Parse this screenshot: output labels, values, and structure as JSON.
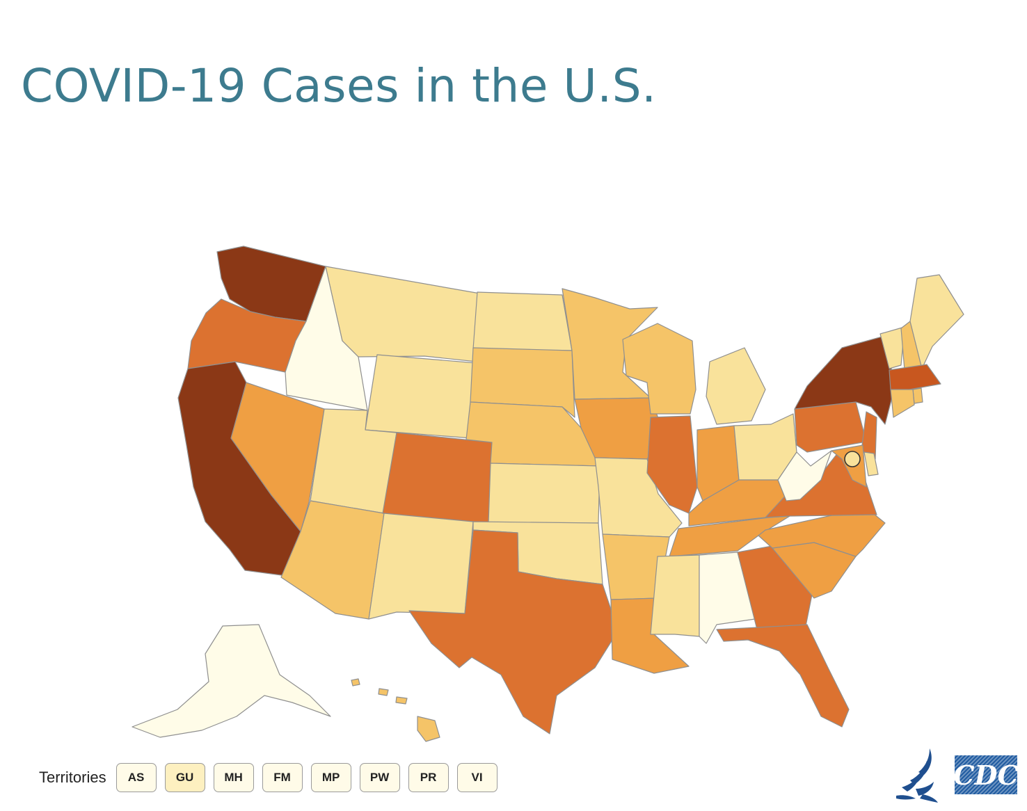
{
  "title": "COVID-19 Cases in the U.S.",
  "territories": {
    "label": "Territories",
    "items": [
      {
        "code": "AS",
        "color": "#fffbe8"
      },
      {
        "code": "GU",
        "color": "#fdf0c0"
      },
      {
        "code": "MH",
        "color": "#fffbe8"
      },
      {
        "code": "FM",
        "color": "#fffbe8"
      },
      {
        "code": "MP",
        "color": "#fffbe8"
      },
      {
        "code": "PW",
        "color": "#fffbe8"
      },
      {
        "code": "PR",
        "color": "#fffbe8"
      },
      {
        "code": "VI",
        "color": "#fffbe8"
      }
    ]
  },
  "legend_colors": {
    "none": "#fffce8",
    "low": "#f9e29b",
    "mid_low": "#f5c468",
    "mid": "#ef9f43",
    "mid_high": "#dc7230",
    "high": "#c8571f",
    "highest": "#8b3816"
  },
  "states": [
    {
      "name": "Washington",
      "level": "highest"
    },
    {
      "name": "Oregon",
      "level": "mid_high"
    },
    {
      "name": "California",
      "level": "highest"
    },
    {
      "name": "Idaho",
      "level": "none"
    },
    {
      "name": "Nevada",
      "level": "mid"
    },
    {
      "name": "Montana",
      "level": "low"
    },
    {
      "name": "Wyoming",
      "level": "low"
    },
    {
      "name": "Utah",
      "level": "low"
    },
    {
      "name": "Arizona",
      "level": "mid_low"
    },
    {
      "name": "Colorado",
      "level": "mid_high"
    },
    {
      "name": "New Mexico",
      "level": "low"
    },
    {
      "name": "North Dakota",
      "level": "low"
    },
    {
      "name": "South Dakota",
      "level": "mid_low"
    },
    {
      "name": "Nebraska",
      "level": "mid_low"
    },
    {
      "name": "Kansas",
      "level": "low"
    },
    {
      "name": "Oklahoma",
      "level": "low"
    },
    {
      "name": "Texas",
      "level": "mid_high"
    },
    {
      "name": "Minnesota",
      "level": "mid_low"
    },
    {
      "name": "Iowa",
      "level": "mid"
    },
    {
      "name": "Missouri",
      "level": "low"
    },
    {
      "name": "Arkansas",
      "level": "mid_low"
    },
    {
      "name": "Louisiana",
      "level": "mid"
    },
    {
      "name": "Wisconsin",
      "level": "mid_low"
    },
    {
      "name": "Illinois",
      "level": "mid_high"
    },
    {
      "name": "Michigan",
      "level": "low"
    },
    {
      "name": "Indiana",
      "level": "mid"
    },
    {
      "name": "Ohio",
      "level": "low"
    },
    {
      "name": "Kentucky",
      "level": "mid"
    },
    {
      "name": "Tennessee",
      "level": "mid"
    },
    {
      "name": "Mississippi",
      "level": "low"
    },
    {
      "name": "Alabama",
      "level": "none"
    },
    {
      "name": "Georgia",
      "level": "mid_high"
    },
    {
      "name": "Florida",
      "level": "mid_high"
    },
    {
      "name": "South Carolina",
      "level": "mid"
    },
    {
      "name": "North Carolina",
      "level": "mid"
    },
    {
      "name": "Virginia",
      "level": "mid_high"
    },
    {
      "name": "West Virginia",
      "level": "none"
    },
    {
      "name": "Pennsylvania",
      "level": "mid_high"
    },
    {
      "name": "New York",
      "level": "highest"
    },
    {
      "name": "Vermont",
      "level": "low"
    },
    {
      "name": "New Hampshire",
      "level": "mid_low"
    },
    {
      "name": "Maine",
      "level": "low"
    },
    {
      "name": "Massachusetts",
      "level": "high"
    },
    {
      "name": "Rhode Island",
      "level": "mid_low"
    },
    {
      "name": "Connecticut",
      "level": "mid_low"
    },
    {
      "name": "New Jersey",
      "level": "mid_high"
    },
    {
      "name": "Delaware",
      "level": "low"
    },
    {
      "name": "Maryland",
      "level": "mid"
    },
    {
      "name": "District of Columbia",
      "level": "low"
    },
    {
      "name": "Alaska",
      "level": "none"
    },
    {
      "name": "Hawaii",
      "level": "mid_low"
    }
  ]
}
